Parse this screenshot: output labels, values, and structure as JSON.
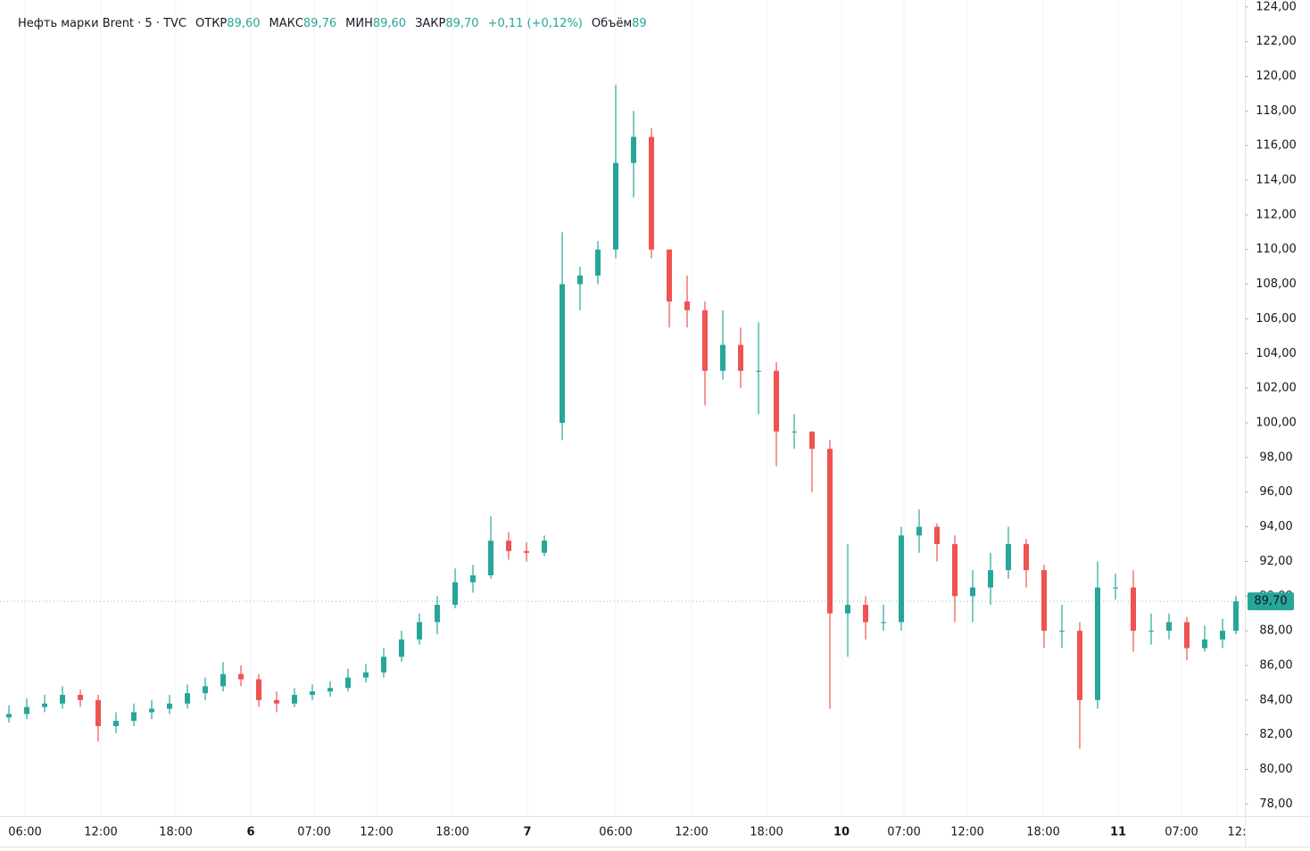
{
  "chart_data": {
    "type": "candlestick",
    "title": "Нефть марки Brent · 5 · TVC",
    "ohlc_legend": [
      {
        "label": "ОТКР",
        "value": "89,60"
      },
      {
        "label": "МАКС",
        "value": "89,76"
      },
      {
        "label": "МИН",
        "value": "89,60"
      },
      {
        "label": "ЗАКР",
        "value": "89,70"
      }
    ],
    "change": "+0,11 (+0,12%)",
    "volume_label": "Объём",
    "volume": "89",
    "up_color": "#26a69a",
    "down_color": "#ef5350",
    "x": [
      1,
      3,
      5,
      7,
      9,
      11,
      13,
      15,
      17,
      19,
      21,
      23,
      25,
      27,
      29,
      31,
      33,
      35,
      37,
      39,
      41,
      43,
      45,
      47,
      49,
      51,
      53,
      55,
      57,
      59,
      61,
      63,
      65,
      67,
      69,
      71,
      73,
      75,
      77,
      79,
      81,
      83,
      85,
      87,
      89,
      91,
      93,
      95,
      97,
      99,
      101,
      103,
      105,
      107,
      109,
      111,
      113,
      115,
      117,
      119,
      121,
      123,
      125,
      127,
      129,
      131,
      133,
      135,
      137,
      138.5
    ],
    "open": [
      83.0,
      83.2,
      83.6,
      83.8,
      84.3,
      84.0,
      82.5,
      82.8,
      83.3,
      83.5,
      83.8,
      84.4,
      84.8,
      85.5,
      85.2,
      84.0,
      83.8,
      84.3,
      84.5,
      84.7,
      85.3,
      85.6,
      86.5,
      87.5,
      88.5,
      89.5,
      90.8,
      91.2,
      93.2,
      92.6,
      92.5,
      100.0,
      108.0,
      108.5,
      110.0,
      115.0,
      116.5,
      110.0,
      107.0,
      106.5,
      103.0,
      104.5,
      103.0,
      103.0,
      99.5,
      99.5,
      98.5,
      89.0,
      89.5,
      88.5,
      88.5,
      93.5,
      94.0,
      93.0,
      90.0,
      90.5,
      91.5,
      93.0,
      91.5,
      88.0,
      88.0,
      84.0,
      90.5,
      90.5,
      88.0,
      88.0,
      88.5,
      87.0,
      87.5,
      88.0
    ],
    "high": [
      83.7,
      84.1,
      84.3,
      84.8,
      84.6,
      84.3,
      83.3,
      83.8,
      84.0,
      84.3,
      84.9,
      85.3,
      86.2,
      86.0,
      85.5,
      84.5,
      84.7,
      84.9,
      85.1,
      85.8,
      86.1,
      87.0,
      88.0,
      89.0,
      90.0,
      91.6,
      91.8,
      94.6,
      93.7,
      93.1,
      93.5,
      111.0,
      109.0,
      110.5,
      119.5,
      118.0,
      117.0,
      110.0,
      108.5,
      107.0,
      106.5,
      105.5,
      105.8,
      103.5,
      100.5,
      99.5,
      99.0,
      93.0,
      90.0,
      89.5,
      94.0,
      95.0,
      94.2,
      93.5,
      91.5,
      92.5,
      94.0,
      93.3,
      91.8,
      89.5,
      88.5,
      92.0,
      91.3,
      91.5,
      89.0,
      89.0,
      88.8,
      88.3,
      88.7,
      90.0
    ],
    "low": [
      82.7,
      82.9,
      83.3,
      83.5,
      83.6,
      81.6,
      82.1,
      82.5,
      82.9,
      83.2,
      83.5,
      84.0,
      84.5,
      84.8,
      83.6,
      83.3,
      83.6,
      84.0,
      84.2,
      84.5,
      85.0,
      85.3,
      86.2,
      87.2,
      87.8,
      89.3,
      90.2,
      91.0,
      92.1,
      92.0,
      92.3,
      99.0,
      106.5,
      108.0,
      109.5,
      113.0,
      109.5,
      105.5,
      105.5,
      101.0,
      102.5,
      102.0,
      100.5,
      97.5,
      98.5,
      96.0,
      83.5,
      86.5,
      87.5,
      88.0,
      88.0,
      92.5,
      92.0,
      88.5,
      88.5,
      89.5,
      91.0,
      90.5,
      87.0,
      87.0,
      81.2,
      83.5,
      89.8,
      86.8,
      87.2,
      87.5,
      86.3,
      86.8,
      87.0,
      87.8
    ],
    "close": [
      83.2,
      83.6,
      83.8,
      84.3,
      84.0,
      82.5,
      82.8,
      83.3,
      83.5,
      83.8,
      84.4,
      84.8,
      85.5,
      85.2,
      84.0,
      83.8,
      84.3,
      84.5,
      84.7,
      85.3,
      85.6,
      86.5,
      87.5,
      88.5,
      89.5,
      90.8,
      91.2,
      93.2,
      92.6,
      92.5,
      93.2,
      108.0,
      108.5,
      110.0,
      115.0,
      116.5,
      110.0,
      107.0,
      106.5,
      103.0,
      104.5,
      103.0,
      103.0,
      99.5,
      99.5,
      98.5,
      89.0,
      89.5,
      88.5,
      88.5,
      93.5,
      94.0,
      93.0,
      90.0,
      90.5,
      91.5,
      93.0,
      91.5,
      88.0,
      88.0,
      84.0,
      90.5,
      90.5,
      88.0,
      88.0,
      88.5,
      87.0,
      87.5,
      88.0,
      89.7
    ],
    "last_price": {
      "value": 89.7,
      "label": "89,70"
    },
    "xlim": [
      0,
      139.5
    ],
    "xticks": [
      {
        "value": 2.8,
        "label": "06:00"
      },
      {
        "value": 11.3,
        "label": "12:00"
      },
      {
        "value": 19.7,
        "label": "18:00"
      },
      {
        "value": 28.1,
        "label": "6"
      },
      {
        "value": 35.2,
        "label": "07:00"
      },
      {
        "value": 42.2,
        "label": "12:00"
      },
      {
        "value": 50.7,
        "label": "18:00"
      },
      {
        "value": 59.1,
        "label": "7"
      },
      {
        "value": 69.0,
        "label": "06:00"
      },
      {
        "value": 77.5,
        "label": "12:00"
      },
      {
        "value": 85.9,
        "label": "18:00"
      },
      {
        "value": 94.3,
        "label": "10"
      },
      {
        "value": 101.3,
        "label": "07:00"
      },
      {
        "value": 108.4,
        "label": "12:00"
      },
      {
        "value": 116.9,
        "label": "18:00"
      },
      {
        "value": 125.3,
        "label": "11"
      },
      {
        "value": 132.4,
        "label": "07:00"
      },
      {
        "value": 138.6,
        "label": "12:"
      }
    ],
    "ylim": [
      77.3,
      124.4
    ],
    "yticks": [
      {
        "value": 78,
        "label": "78,00"
      },
      {
        "value": 80,
        "label": "80,00"
      },
      {
        "value": 82,
        "label": "82,00"
      },
      {
        "value": 84,
        "label": "84,00"
      },
      {
        "value": 86,
        "label": "86,00"
      },
      {
        "value": 88,
        "label": "88,00"
      },
      {
        "value": 90,
        "label": "90,00"
      },
      {
        "value": 92,
        "label": "92,00"
      },
      {
        "value": 94,
        "label": "94,00"
      },
      {
        "value": 96,
        "label": "96,00"
      },
      {
        "value": 98,
        "label": "98,00"
      },
      {
        "value": 100,
        "label": "100,00"
      },
      {
        "value": 102,
        "label": "102,00"
      },
      {
        "value": 104,
        "label": "104,00"
      },
      {
        "value": 106,
        "label": "106,00"
      },
      {
        "value": 108,
        "label": "108,00"
      },
      {
        "value": 110,
        "label": "110,00"
      },
      {
        "value": 112,
        "label": "112,00"
      },
      {
        "value": 114,
        "label": "114,00"
      },
      {
        "value": 116,
        "label": "116,00"
      },
      {
        "value": 118,
        "label": "118,00"
      },
      {
        "value": 120,
        "label": "120,00"
      },
      {
        "value": 122,
        "label": "122,00"
      },
      {
        "value": 124,
        "label": "124,00"
      }
    ],
    "xgrid": true
  }
}
